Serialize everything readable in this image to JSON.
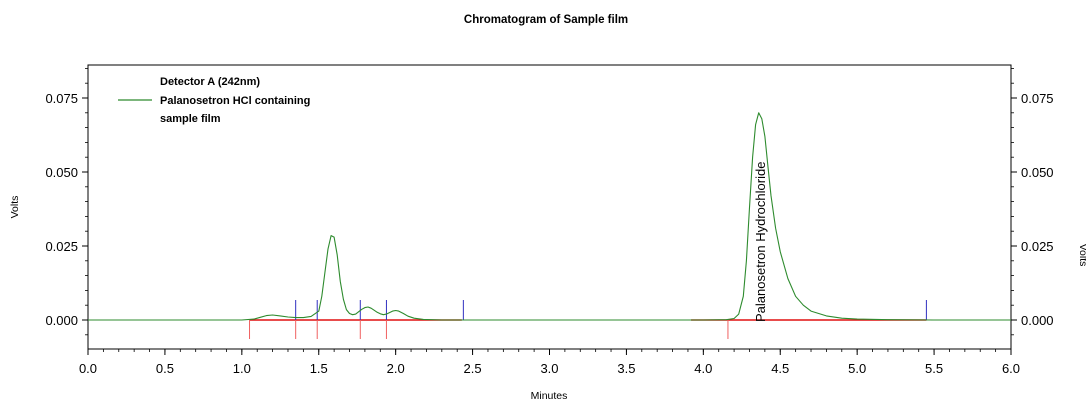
{
  "chart_data": {
    "type": "line",
    "title": "Chromatogram of Sample film",
    "xlabel": "Minutes",
    "ylabel_left": "Volts",
    "ylabel_right": "Volts",
    "xlim": [
      0.0,
      6.0
    ],
    "ylim": [
      -0.01,
      0.085
    ],
    "x_ticks": [
      "0.0",
      "0.5",
      "1.0",
      "1.5",
      "2.0",
      "2.5",
      "3.0",
      "3.5",
      "4.0",
      "4.5",
      "5.0",
      "5.5",
      "6.0"
    ],
    "y_ticks": [
      "0.000",
      "0.025",
      "0.050",
      "0.075"
    ],
    "legend": {
      "header": "Detector A (242nm)",
      "entry_line1": "Palanosetron HCl containing",
      "entry_line2": "sample film",
      "placement": "top-left"
    },
    "peak_annotation": "Palanosetron Hydrochloride",
    "series": [
      {
        "color": "#2e8b2e",
        "x": [
          0.0,
          0.5,
          1.0,
          1.08,
          1.12,
          1.16,
          1.2,
          1.25,
          1.3,
          1.35,
          1.4,
          1.45,
          1.5,
          1.52,
          1.54,
          1.56,
          1.58,
          1.6,
          1.62,
          1.64,
          1.66,
          1.68,
          1.7,
          1.72,
          1.74,
          1.76,
          1.78,
          1.8,
          1.82,
          1.84,
          1.86,
          1.88,
          1.9,
          1.92,
          1.94,
          1.96,
          1.98,
          2.0,
          2.02,
          2.05,
          2.08,
          2.12,
          2.18,
          2.3,
          2.5,
          3.0,
          3.5,
          4.0,
          4.15,
          4.2,
          4.23,
          4.26,
          4.28,
          4.3,
          4.32,
          4.34,
          4.36,
          4.38,
          4.4,
          4.42,
          4.44,
          4.47,
          4.5,
          4.55,
          4.6,
          4.65,
          4.7,
          4.8,
          4.9,
          5.0,
          5.2,
          5.5,
          6.0
        ],
        "y": [
          0.0,
          0.0,
          0.0,
          0.0003,
          0.0009,
          0.0015,
          0.0017,
          0.0014,
          0.001,
          0.0008,
          0.0008,
          0.0012,
          0.003,
          0.008,
          0.016,
          0.024,
          0.0285,
          0.028,
          0.022,
          0.013,
          0.007,
          0.0035,
          0.0022,
          0.0018,
          0.002,
          0.0028,
          0.0036,
          0.0042,
          0.0044,
          0.004,
          0.0033,
          0.0026,
          0.0021,
          0.0018,
          0.002,
          0.0025,
          0.003,
          0.0032,
          0.003,
          0.0022,
          0.0013,
          0.0006,
          0.0002,
          0.0,
          0.0,
          0.0,
          0.0,
          0.0,
          0.0001,
          0.0005,
          0.002,
          0.008,
          0.02,
          0.038,
          0.055,
          0.066,
          0.07,
          0.068,
          0.062,
          0.052,
          0.042,
          0.031,
          0.023,
          0.014,
          0.008,
          0.005,
          0.003,
          0.0014,
          0.0006,
          0.0003,
          0.0001,
          0.0,
          0.0
        ]
      }
    ],
    "baseline_segments": [
      {
        "x1": 1.05,
        "x2": 2.43,
        "y": 0.0
      },
      {
        "x1": 3.92,
        "x2": 5.45,
        "y": 0.0
      }
    ],
    "red_tick_marks": [
      1.05,
      1.35,
      1.49,
      1.77,
      1.94,
      4.16
    ],
    "blue_tick_marks": [
      1.35,
      1.49,
      1.77,
      1.94,
      2.44,
      5.45
    ]
  }
}
